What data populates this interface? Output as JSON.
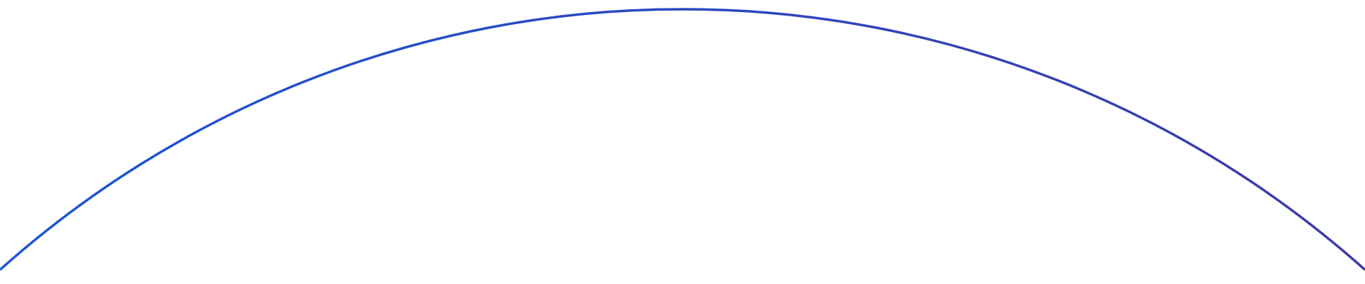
{
  "arc": {
    "color_start": "#1a56d6",
    "color_end": "#3f3aa8"
  }
}
